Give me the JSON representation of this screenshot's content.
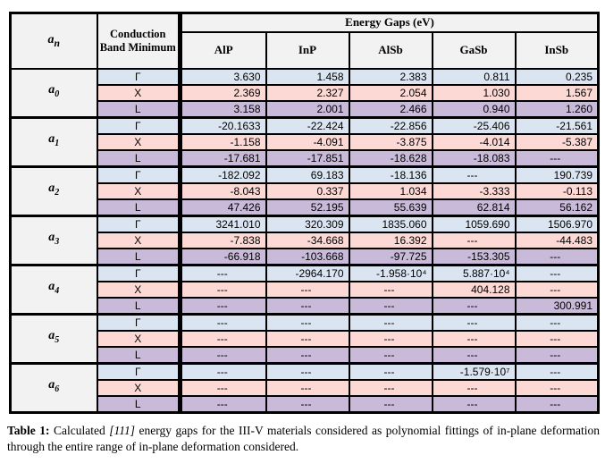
{
  "colors": {
    "gamma_row": "#dbe5f1",
    "x_row": "#fcd9d5",
    "l_row": "#c9bad9",
    "header_bg": "#f2f2f2",
    "border": "#000000"
  },
  "table": {
    "header": {
      "coef_symbol": {
        "base": "a",
        "sub": "n"
      },
      "cbm_label": "Conduction Band Minimum",
      "energy_gaps_label": "Energy Gaps (eV)",
      "materials": [
        "AlP",
        "InP",
        "AlSb",
        "GaSb",
        "InSb"
      ]
    },
    "groups": [
      {
        "coef": {
          "base": "a",
          "sub": "0"
        },
        "rows": [
          {
            "band": "Γ",
            "values": [
              "3.630",
              "1.458",
              "2.383",
              "0.811",
              "0.235"
            ]
          },
          {
            "band": "X",
            "values": [
              "2.369",
              "2.327",
              "2.054",
              "1.030",
              "1.567"
            ]
          },
          {
            "band": "L",
            "values": [
              "3.158",
              "2.001",
              "2.466",
              "0.940",
              "1.260"
            ]
          }
        ]
      },
      {
        "coef": {
          "base": "a",
          "sub": "1"
        },
        "rows": [
          {
            "band": "Γ",
            "values": [
              "-20.1633",
              "-22.424",
              "-22.856",
              "-25.406",
              "-21.561"
            ]
          },
          {
            "band": "X",
            "values": [
              "-1.158",
              "-4.091",
              "-3.875",
              "-4.014",
              "-5.387"
            ]
          },
          {
            "band": "L",
            "values": [
              "-17.681",
              "-17.851",
              "-18.628",
              "-18.083",
              "---"
            ]
          }
        ]
      },
      {
        "coef": {
          "base": "a",
          "sub": "2"
        },
        "rows": [
          {
            "band": "Γ",
            "values": [
              "-182.092",
              "69.183",
              "-18.136",
              "---",
              "190.739"
            ]
          },
          {
            "band": "X",
            "values": [
              "-8.043",
              "0.337",
              "1.034",
              "-3.333",
              "-0.113"
            ]
          },
          {
            "band": "L",
            "values": [
              "47.426",
              "52.195",
              "55.639",
              "62.814",
              "56.162"
            ]
          }
        ]
      },
      {
        "coef": {
          "base": "a",
          "sub": "3"
        },
        "rows": [
          {
            "band": "Γ",
            "values": [
              "3241.010",
              "320.309",
              "1835.060",
              "1059.690",
              "1506.970"
            ]
          },
          {
            "band": "X",
            "values": [
              "-7.838",
              "-34.668",
              "16.392",
              "---",
              "-44.483"
            ]
          },
          {
            "band": "L",
            "values": [
              "-66.918",
              "-103.668",
              "-97.725",
              "-153.305",
              "---"
            ]
          }
        ]
      },
      {
        "coef": {
          "base": "a",
          "sub": "4"
        },
        "rows": [
          {
            "band": "Γ",
            "values": [
              "---",
              "-2964.170",
              "-1.958·10⁴",
              "5.887·10⁴",
              "---"
            ]
          },
          {
            "band": "X",
            "values": [
              "---",
              "---",
              "---",
              "404.128",
              "---"
            ]
          },
          {
            "band": "L",
            "values": [
              "---",
              "---",
              "---",
              "---",
              "300.991"
            ]
          }
        ]
      },
      {
        "coef": {
          "base": "a",
          "sub": "5"
        },
        "rows": [
          {
            "band": "Γ",
            "values": [
              "---",
              "---",
              "---",
              "---",
              "---"
            ]
          },
          {
            "band": "X",
            "values": [
              "---",
              "---",
              "---",
              "---",
              "---"
            ]
          },
          {
            "band": "L",
            "values": [
              "---",
              "---",
              "---",
              "---",
              "---"
            ]
          }
        ]
      },
      {
        "coef": {
          "base": "a",
          "sub": "6"
        },
        "rows": [
          {
            "band": "Γ",
            "values": [
              "---",
              "---",
              "---",
              "-1.579·10⁷",
              "---"
            ]
          },
          {
            "band": "X",
            "values": [
              "---",
              "---",
              "---",
              "---",
              "---"
            ]
          },
          {
            "band": "L",
            "values": [
              "---",
              "---",
              "---",
              "---",
              "---"
            ]
          }
        ]
      }
    ]
  },
  "caption": {
    "label": "Table 1:",
    "text_before": " Calculated ",
    "italic": "[111]",
    "text_after": " energy gaps for the III-V materials considered as polynomial fittings of in-plane deformation through the entire range of in-plane deformation considered."
  }
}
